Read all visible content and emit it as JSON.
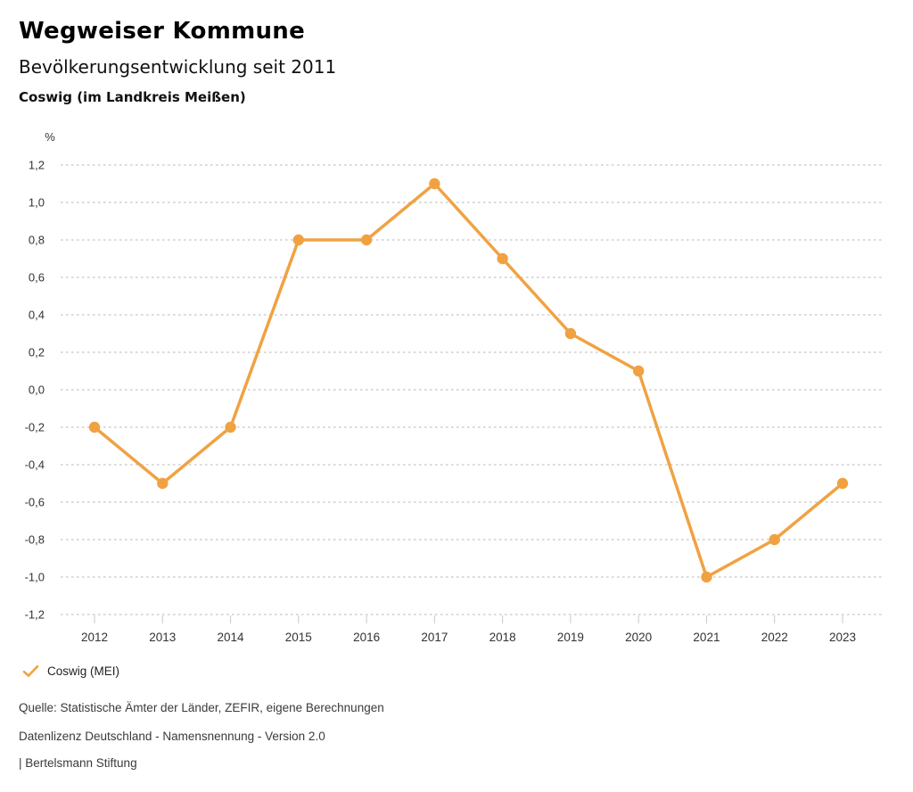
{
  "header": {
    "title": "Wegweiser Kommune",
    "subtitle": "Bevölkerungsentwicklung seit 2011",
    "region": "Coswig (im Landkreis Meißen)"
  },
  "chart_data": {
    "type": "line",
    "title": "Bevölkerungsentwicklung seit 2011",
    "subtitle_region": "Coswig (im Landkreis Meißen)",
    "unit_label": "%",
    "xlabel": "",
    "ylabel": "%",
    "categories": [
      "2012",
      "2013",
      "2014",
      "2015",
      "2016",
      "2017",
      "2018",
      "2019",
      "2020",
      "2021",
      "2022",
      "2023"
    ],
    "series": [
      {
        "name": "Coswig (MEI)",
        "values": [
          -0.2,
          -0.5,
          -0.2,
          0.8,
          0.8,
          1.1,
          0.7,
          0.3,
          0.1,
          -1.0,
          -0.8,
          -0.5
        ],
        "color": "#F0A242"
      }
    ],
    "ylim": [
      -1.2,
      1.2
    ],
    "yticks": [
      1.2,
      1.0,
      0.8,
      0.6,
      0.4,
      0.2,
      0.0,
      -0.2,
      -0.4,
      -0.6,
      -0.8,
      -1.0,
      -1.2
    ],
    "ytick_labels": [
      "1,2",
      "1,0",
      "0,8",
      "0,6",
      "0,4",
      "0,2",
      "0,0",
      "-0,2",
      "-0,4",
      "-0,6",
      "-0,8",
      "-1,0",
      "-1,2"
    ],
    "grid": "dotted-horizontal",
    "legend_position": "bottom-left",
    "marker": "circle"
  },
  "legend": {
    "items": [
      {
        "label": "Coswig (MEI)",
        "color": "#F0A242",
        "icon": "checkmark-icon"
      }
    ]
  },
  "footer": {
    "source": "Quelle: Statistische Ämter der Länder, ZEFIR, eigene Berechnungen",
    "license": "Datenlizenz Deutschland - Namensnennung - Version 2.0",
    "attribution": "| Bertelsmann Stiftung"
  },
  "colors": {
    "accent": "#F0A242",
    "grid": "#b5b5b5",
    "tick": "#c9c9c9",
    "axis_text": "#333333",
    "text": "#3a3a3a"
  }
}
